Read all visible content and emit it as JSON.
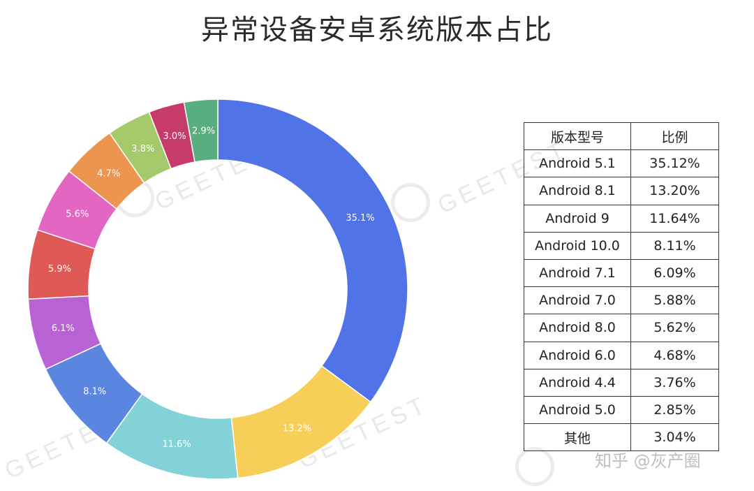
{
  "title": "异常设备安卓系统版本占比",
  "watermark": "GEETEST",
  "credit": "知乎 @灰产圈",
  "chart_data": {
    "type": "pie",
    "donut": true,
    "slices": [
      {
        "label": "35.1%",
        "value": 35.12,
        "color": "#5073E8"
      },
      {
        "label": "13.2%",
        "value": 13.2,
        "color": "#F7CF58"
      },
      {
        "label": "11.6%",
        "value": 11.64,
        "color": "#82D2D8"
      },
      {
        "label": "8.1%",
        "value": 8.11,
        "color": "#5B86E0"
      },
      {
        "label": "6.1%",
        "value": 6.09,
        "color": "#B962D6"
      },
      {
        "label": "5.9%",
        "value": 5.88,
        "color": "#DF5A57"
      },
      {
        "label": "5.6%",
        "value": 5.62,
        "color": "#E266C2"
      },
      {
        "label": "4.7%",
        "value": 4.68,
        "color": "#EB9550"
      },
      {
        "label": "3.8%",
        "value": 3.76,
        "color": "#A4CA6B"
      },
      {
        "label": "3.0%",
        "value": 3.04,
        "color": "#C73B6B"
      },
      {
        "label": "2.9%",
        "value": 2.85,
        "color": "#58AE7E"
      }
    ]
  },
  "table": {
    "headers": [
      "版本型号",
      "比例"
    ],
    "rows": [
      [
        "Android 5.1",
        "35.12%"
      ],
      [
        "Android 8.1",
        "13.20%"
      ],
      [
        "Android 9",
        "11.64%"
      ],
      [
        "Android 10.0",
        "8.11%"
      ],
      [
        "Android 7.1",
        "6.09%"
      ],
      [
        "Android 7.0",
        "5.88%"
      ],
      [
        "Android 8.0",
        "5.62%"
      ],
      [
        "Android 6.0",
        "4.68%"
      ],
      [
        "Android 4.4",
        "3.76%"
      ],
      [
        "Android 5.0",
        "2.85%"
      ],
      [
        "其他",
        "3.04%"
      ]
    ]
  }
}
